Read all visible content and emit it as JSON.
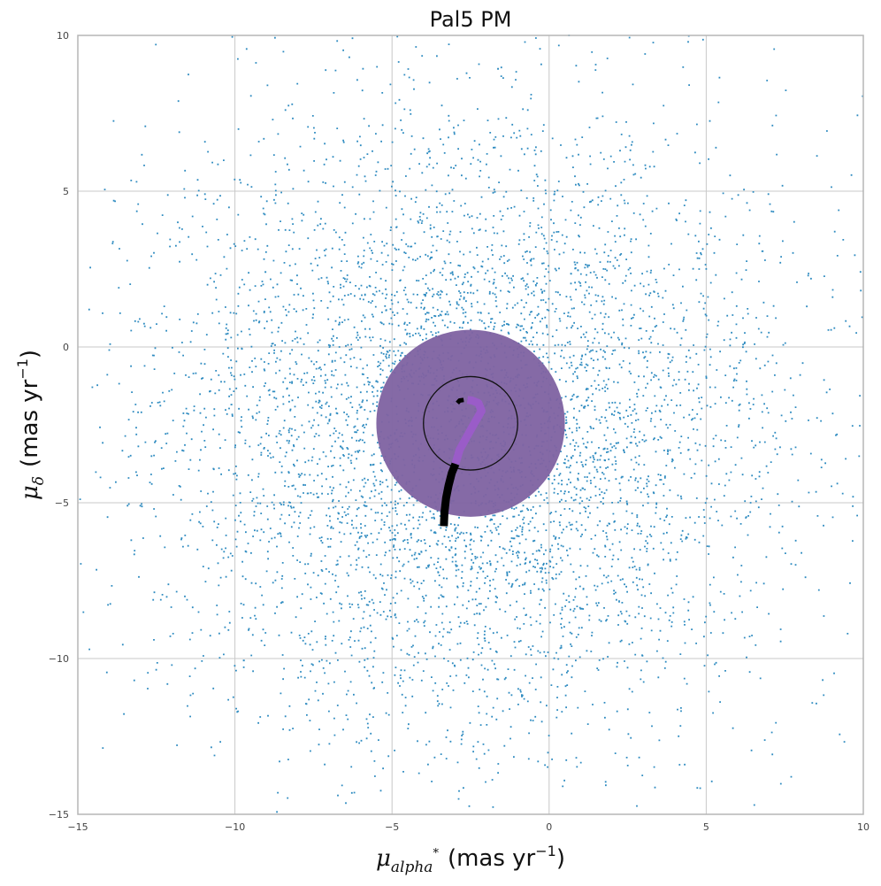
{
  "chart_data": {
    "type": "scatter",
    "title": "Pal5 PM",
    "xlabel": {
      "symbol": "μ",
      "subscript": "alpha",
      "superscript": "*",
      "unit": "(mas yr",
      "unit_exp": "−1",
      "unit_close": ")"
    },
    "ylabel": {
      "symbol": "μ",
      "subscript": "δ",
      "unit": "(mas yr",
      "unit_exp": "−1",
      "unit_close": ")"
    },
    "xlim": [
      -15,
      10
    ],
    "ylim": [
      -15,
      10
    ],
    "xticks": [
      {
        "value": -15,
        "label": "−15"
      },
      {
        "value": -10,
        "label": "−10"
      },
      {
        "value": -5,
        "label": "−5"
      },
      {
        "value": 0,
        "label": "0"
      },
      {
        "value": 5,
        "label": "5"
      },
      {
        "value": 10,
        "label": "10"
      }
    ],
    "yticks": [
      {
        "value": -15,
        "label": "−15"
      },
      {
        "value": -10,
        "label": "−10"
      },
      {
        "value": -5,
        "label": "−5"
      },
      {
        "value": 0,
        "label": "0"
      },
      {
        "value": 5,
        "label": "5"
      },
      {
        "value": 10,
        "label": "10"
      }
    ],
    "grid": true,
    "legend": "none",
    "series": [
      {
        "type": "scatter",
        "color": "#2e8bc0",
        "point_count": 45000,
        "distribution": {
          "center": [
            -2.5,
            -2.6
          ],
          "sigma": [
            5.0,
            5.0
          ]
        }
      }
    ],
    "overlays": {
      "selection_disk": {
        "center": [
          -2.5,
          -2.45
        ],
        "radius": 3.0,
        "color": "#8064a2",
        "opacity": 0.96
      },
      "ring": {
        "center": [
          -2.5,
          -2.45
        ],
        "radius": 1.5,
        "color": "#111111"
      },
      "orbit_track_black": {
        "color": "#000000",
        "points": [
          [
            -3.35,
            -5.75
          ],
          [
            -3.33,
            -5.3
          ],
          [
            -3.28,
            -4.85
          ],
          [
            -3.2,
            -4.45
          ],
          [
            -3.1,
            -4.05
          ],
          [
            -2.98,
            -3.75
          ]
        ]
      },
      "orbit_track_purple": {
        "color": "#9a5cc8",
        "points": [
          [
            -2.98,
            -3.75
          ],
          [
            -2.85,
            -3.3
          ],
          [
            -2.6,
            -2.85
          ],
          [
            -2.35,
            -2.4
          ],
          [
            -2.15,
            -2.05
          ],
          [
            -2.25,
            -1.8
          ],
          [
            -2.45,
            -1.72
          ],
          [
            -2.6,
            -1.7
          ]
        ]
      },
      "orbit_tip_black": {
        "color": "#000000",
        "points": [
          [
            -2.72,
            -1.7
          ],
          [
            -2.85,
            -1.72
          ],
          [
            -2.92,
            -1.8
          ]
        ]
      }
    }
  }
}
